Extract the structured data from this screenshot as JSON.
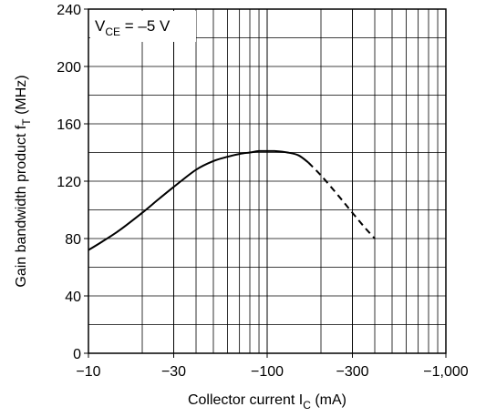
{
  "chart_data": {
    "type": "line",
    "x_scale": "log",
    "grid": true,
    "xlabel": {
      "text": "Collector current  I",
      "sub": "C",
      "unit": "  (mA)"
    },
    "ylabel": {
      "text": "Gain bandwidth product  f",
      "sub": "T",
      "unit": "  (MHz)"
    },
    "annotation": {
      "main": "V",
      "sub": "CE",
      "value": " = –5 V"
    },
    "xlim": [
      -10,
      -1000
    ],
    "ylim": [
      0,
      240
    ],
    "x_ticks": [
      {
        "value": -10,
        "label": "−10"
      },
      {
        "value": -30,
        "label": "−30"
      },
      {
        "value": -100,
        "label": "−100"
      },
      {
        "value": -300,
        "label": "−300"
      },
      {
        "value": -1000,
        "label": "−1,000"
      }
    ],
    "y_ticks": [
      {
        "value": 0,
        "label": "0"
      },
      {
        "value": 40,
        "label": "40"
      },
      {
        "value": 80,
        "label": "80"
      },
      {
        "value": 120,
        "label": "120"
      },
      {
        "value": 160,
        "label": "160"
      },
      {
        "value": 200,
        "label": "200"
      },
      {
        "value": 240,
        "label": "240"
      }
    ],
    "series": [
      {
        "style": "solid",
        "x": [
          -10,
          -12,
          -15,
          -20,
          -25,
          -30,
          -40,
          -50,
          -60,
          -70,
          -80,
          -90,
          -100,
          -110,
          -130,
          -150,
          -170
        ],
        "y": [
          72,
          78,
          86,
          98,
          108,
          116,
          128,
          134,
          137,
          139,
          140,
          141,
          141,
          141,
          140,
          138,
          133
        ]
      },
      {
        "style": "dashed",
        "x": [
          -170,
          -200,
          -250,
          -300,
          -350,
          -400
        ],
        "y": [
          133,
          124,
          110,
          98,
          88,
          80
        ]
      }
    ]
  }
}
